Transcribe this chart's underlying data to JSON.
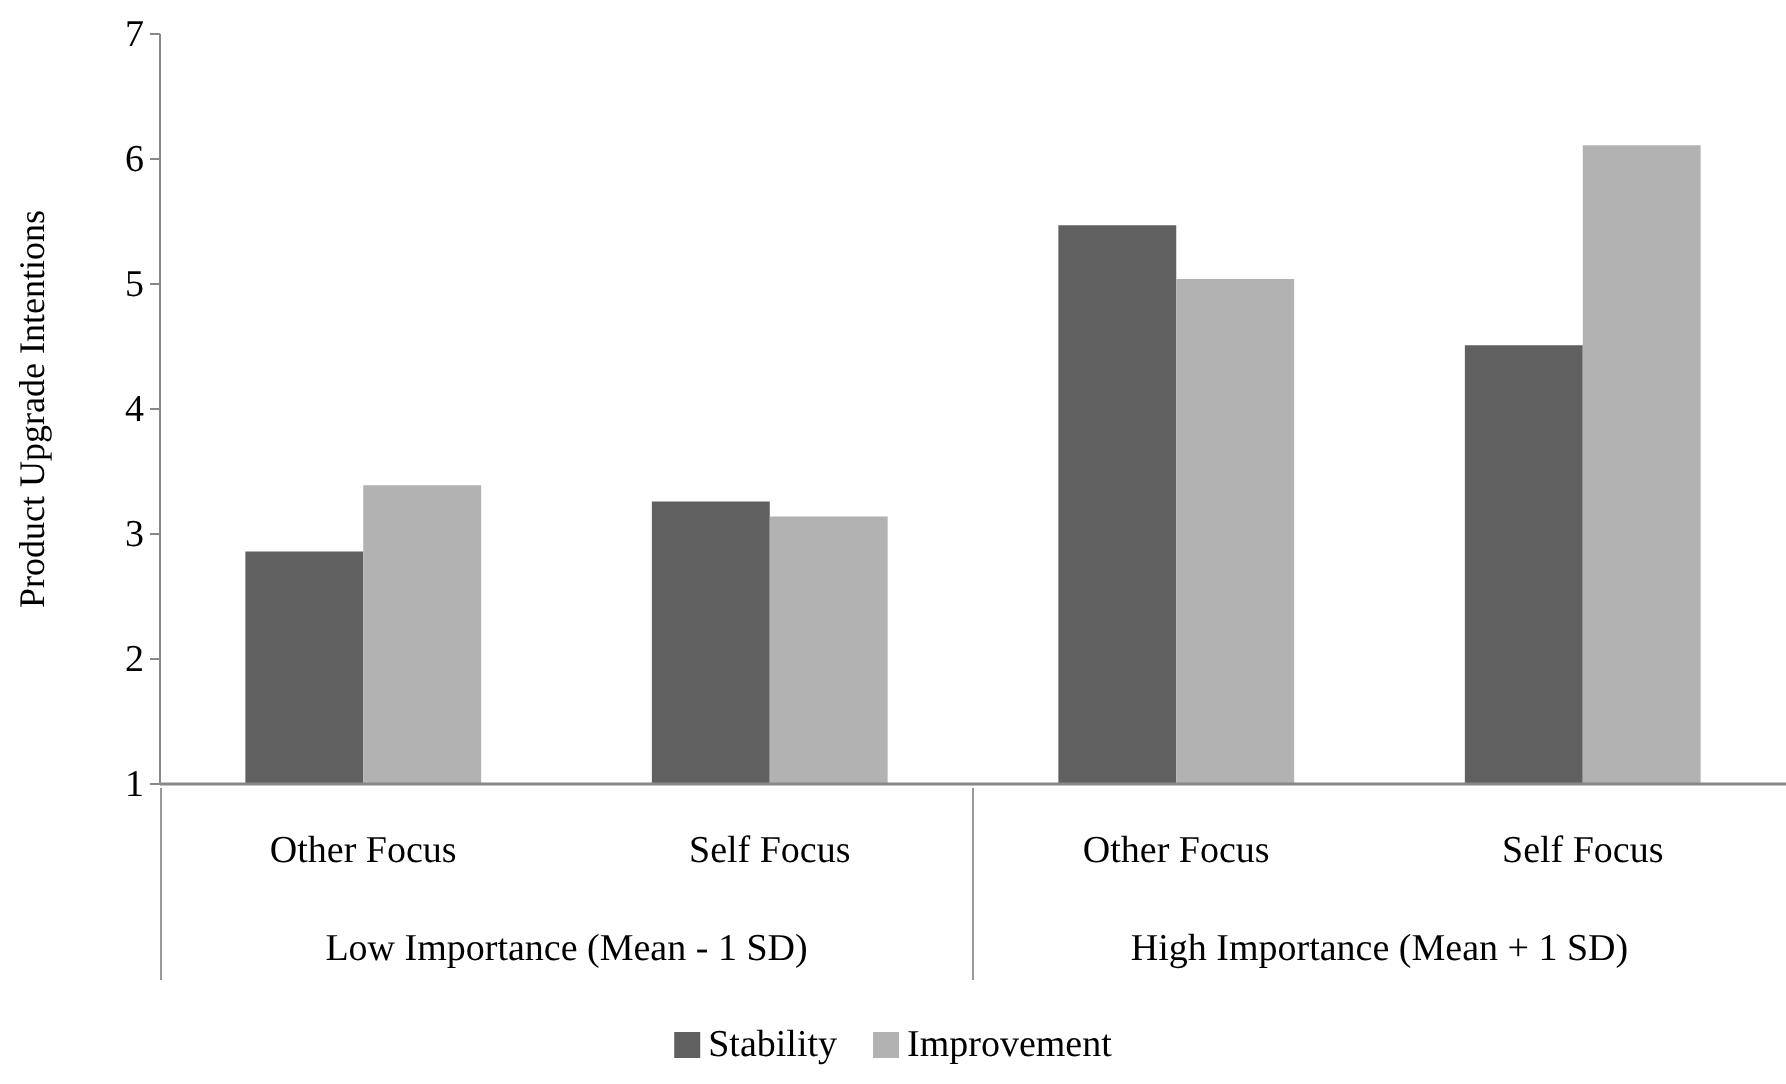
{
  "chart_data": {
    "type": "bar",
    "ylabel": "Product Upgrade Intentions",
    "categories": [
      "Other Focus",
      "Self Focus",
      "Other Focus",
      "Self Focus"
    ],
    "series": [
      {
        "name": "Stability",
        "color": "#606060",
        "values": [
          2.86,
          3.26,
          5.47,
          4.51
        ]
      },
      {
        "name": "Improvement",
        "color": "#b2b2b2",
        "values": [
          3.39,
          3.14,
          5.04,
          6.11
        ]
      }
    ],
    "annotations": [
      "Low Importance (Mean - 1 SD)",
      "High Importance (Mean + 1 SD)"
    ],
    "ylim": [
      1,
      7
    ],
    "yticks": [
      1,
      2,
      3,
      4,
      5,
      6,
      7
    ],
    "grid": false,
    "legend": "bottom"
  }
}
